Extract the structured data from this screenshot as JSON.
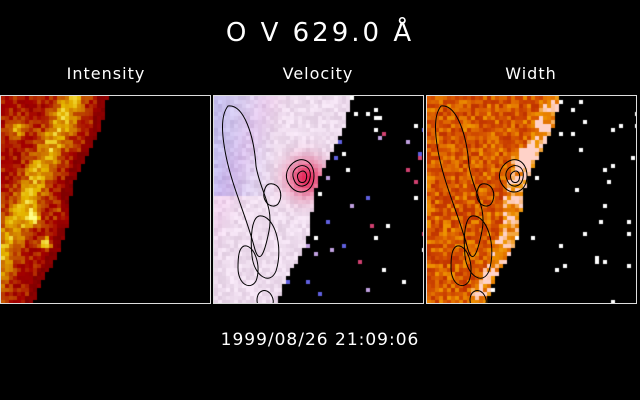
{
  "title": "O V 629.0 Å",
  "panels": [
    {
      "label": "Intensity"
    },
    {
      "label": "Velocity"
    },
    {
      "label": "Width"
    }
  ],
  "timestamp": "1999/08/26 21:09:06",
  "colors": {
    "background": "#000000",
    "panel_border": "#dddddd",
    "contour": "#000000"
  }
}
